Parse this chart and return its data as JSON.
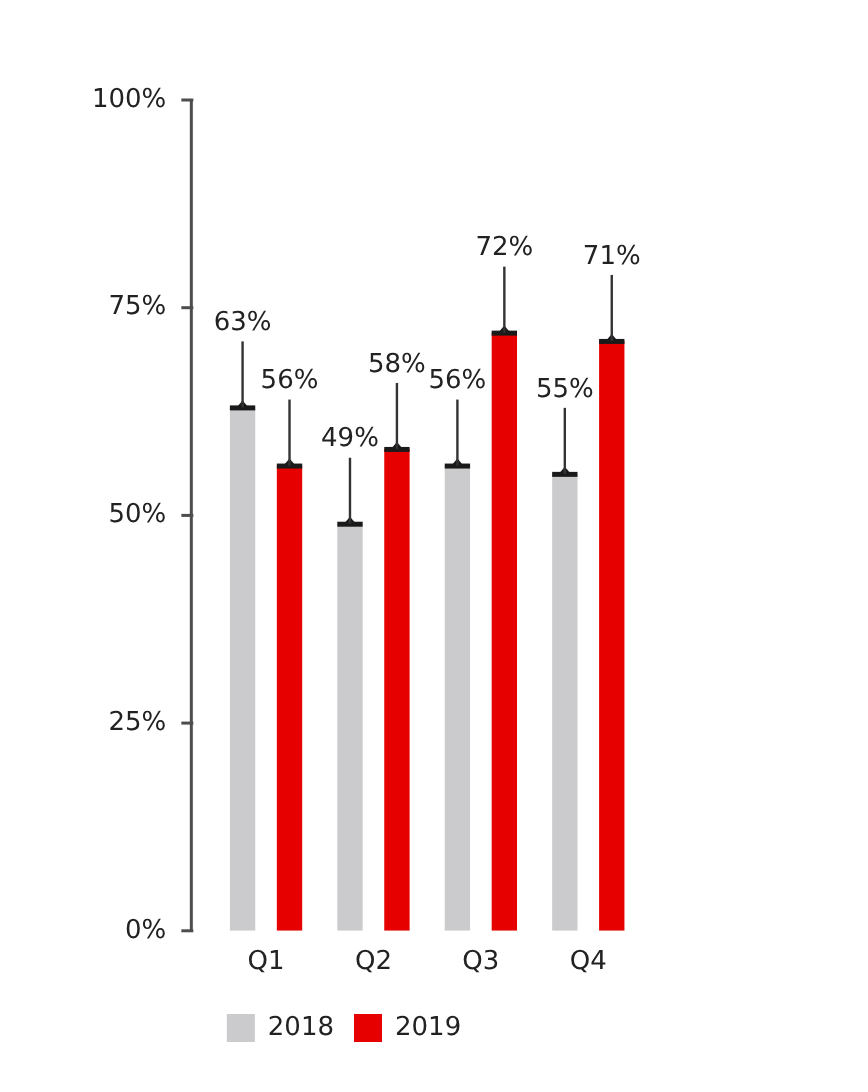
{
  "chart_data": {
    "type": "bar",
    "categories": [
      "Q1",
      "Q2",
      "Q3",
      "Q4"
    ],
    "series": [
      {
        "name": "2018",
        "color": "#cbcacc",
        "values": [
          63,
          49,
          56,
          55
        ],
        "value_labels": [
          "63%",
          "49%",
          "56%",
          "55%"
        ]
      },
      {
        "name": "2019",
        "color": "#e60000",
        "values": [
          56,
          58,
          72,
          71
        ],
        "value_labels": [
          "56%",
          "58%",
          "72%",
          "71%"
        ]
      }
    ],
    "ylim": [
      0,
      100
    ],
    "yticks": [
      {
        "value": 0,
        "label": "0%"
      },
      {
        "value": 25,
        "label": "25%"
      },
      {
        "value": 50,
        "label": "50%"
      },
      {
        "value": 75,
        "label": "75%"
      },
      {
        "value": 100,
        "label": "100%"
      }
    ],
    "grid": false,
    "legend": "bottom"
  }
}
